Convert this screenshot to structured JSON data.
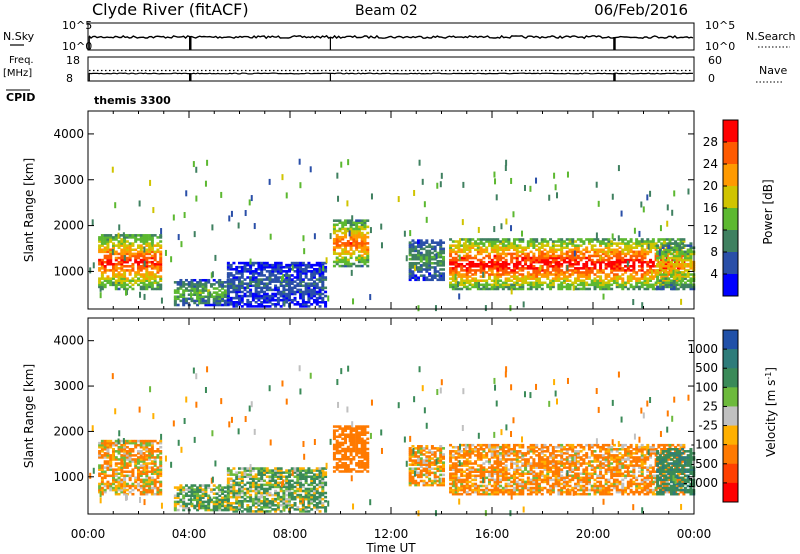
{
  "header": {
    "station": "Clyde River (fitACF)",
    "beam": "Beam 02",
    "date": "06/Feb/2016"
  },
  "chart_data": {
    "type": "heatmap",
    "time_ticks": [
      "00:00",
      "04:00",
      "08:00",
      "12:00",
      "16:00",
      "20:00",
      "00:00"
    ],
    "time_range_hours": [
      0,
      24
    ],
    "xlabel": "Time UT",
    "nsky_panel": {
      "left_label": "N.Sky",
      "right_label": "N.Search",
      "left_ticks": [
        "10^5",
        "10^0"
      ],
      "right_ticks": [
        "10^5",
        "10^0"
      ]
    },
    "freq_panel": {
      "left_label_1": "Freq.",
      "left_label_2": "[MHz]",
      "left_ticks": [
        "18",
        "8"
      ],
      "right_label": "Nave",
      "right_ticks": [
        "60",
        "0"
      ],
      "cpid_label": "CPID",
      "cpid_value": "themis 3300",
      "freq_mhz_approx": 9.5,
      "nave_approx": 20
    },
    "scan_marker_hours": [
      0.05,
      4.05,
      9.6,
      20.85
    ],
    "power_panel": {
      "ylabel": "Slant Range [km]",
      "yticks": [
        "1000",
        "2000",
        "3000",
        "4000"
      ],
      "ylim_km": [
        180,
        4500
      ],
      "colorbar_label": "Power [dB]",
      "colorbar_ticks": [
        "4",
        "8",
        "12",
        "16",
        "20",
        "24",
        "28"
      ],
      "colorbar_range": [
        0,
        32
      ],
      "colors": [
        "#0000ff",
        "#2a4fa8",
        "#3f8060",
        "#5cb830",
        "#d0c400",
        "#ff9a00",
        "#ff5a00",
        "#ff0000"
      ]
    },
    "velocity_panel": {
      "ylabel": "Slant Range [km]",
      "yticks": [
        "1000",
        "2000",
        "3000",
        "4000"
      ],
      "ylim_km": [
        180,
        4500
      ],
      "colorbar_label": "Velocity [m s",
      "colorbar_sup": "-1",
      "colorbar_ticks": [
        "1000",
        "500",
        "100",
        "25",
        "-25",
        "-100",
        "-500",
        "-1000"
      ],
      "colors": [
        "#2050a8",
        "#2e7c7a",
        "#3a8a58",
        "#6dba3c",
        "#c0c0c0",
        "#ffb000",
        "#ff7a00",
        "#ff4000",
        "#ff0000"
      ]
    },
    "echo_regions": [
      {
        "t0": 0.4,
        "t1": 2.9,
        "r0": 600,
        "r1": 1800,
        "power_db": 24,
        "velocity": -100
      },
      {
        "t0": 3.4,
        "t1": 5.6,
        "r0": 250,
        "r1": 800,
        "power_db": 12,
        "velocity": 100
      },
      {
        "t0": 5.5,
        "t1": 9.4,
        "r0": 220,
        "r1": 1200,
        "power_db": 6,
        "velocity": 100
      },
      {
        "t0": 9.7,
        "t1": 11.1,
        "r0": 1100,
        "r1": 2100,
        "power_db": 22,
        "velocity": -300
      },
      {
        "t0": 12.7,
        "t1": 14.1,
        "r0": 800,
        "r1": 1700,
        "power_db": 10,
        "velocity": -100
      },
      {
        "t0": 14.3,
        "t1": 23.6,
        "r0": 600,
        "r1": 1700,
        "power_db": 26,
        "velocity": -150
      },
      {
        "t0": 22.5,
        "t1": 24.0,
        "r0": 600,
        "r1": 1600,
        "power_db": 18,
        "velocity": 400
      }
    ]
  }
}
